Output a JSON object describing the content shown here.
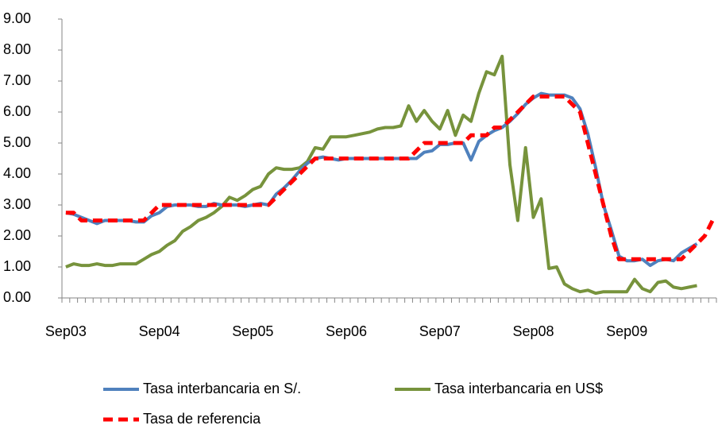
{
  "chart_data": {
    "type": "line",
    "categories": [
      "Sep03",
      null,
      null,
      null,
      null,
      null,
      null,
      null,
      null,
      null,
      null,
      null,
      "Sep04",
      null,
      null,
      null,
      null,
      null,
      null,
      null,
      null,
      null,
      null,
      null,
      "Sep05",
      null,
      null,
      null,
      null,
      null,
      null,
      null,
      null,
      null,
      null,
      null,
      "Sep06",
      null,
      null,
      null,
      null,
      null,
      null,
      null,
      null,
      null,
      null,
      null,
      "Sep07",
      null,
      null,
      null,
      null,
      null,
      null,
      null,
      null,
      null,
      null,
      null,
      "Sep08",
      null,
      null,
      null,
      null,
      null,
      null,
      null,
      null,
      null,
      null,
      null,
      "Sep09",
      null,
      null,
      null,
      null,
      null,
      null,
      null,
      null,
      null,
      null,
      null
    ],
    "series": [
      {
        "name": "Tasa interbancaria en S/.",
        "color": "#4f81bd",
        "dash": false,
        "values": [
          2.75,
          2.7,
          2.6,
          2.5,
          2.4,
          2.5,
          2.5,
          2.5,
          2.5,
          2.45,
          2.45,
          2.65,
          2.75,
          2.95,
          3.0,
          3.0,
          3.0,
          2.95,
          2.95,
          3.05,
          3.0,
          3.0,
          3.0,
          2.95,
          3.0,
          3.05,
          3.0,
          3.35,
          3.55,
          3.8,
          4.1,
          4.35,
          4.5,
          4.55,
          4.5,
          4.45,
          4.5,
          4.5,
          4.5,
          4.5,
          4.5,
          4.5,
          4.5,
          4.5,
          4.5,
          4.5,
          4.7,
          4.75,
          4.95,
          4.95,
          5.0,
          5.0,
          4.45,
          5.05,
          5.25,
          5.4,
          5.5,
          5.7,
          5.95,
          6.25,
          6.45,
          6.6,
          6.55,
          6.55,
          6.55,
          6.45,
          6.1,
          5.3,
          4.2,
          3.0,
          2.2,
          1.35,
          1.2,
          1.2,
          1.25,
          1.05,
          1.2,
          1.25,
          1.2,
          1.45,
          1.6,
          1.75,
          null,
          null
        ]
      },
      {
        "name": "Tasa interbancaria en US$",
        "color": "#77933c",
        "dash": false,
        "values": [
          1.0,
          1.1,
          1.05,
          1.05,
          1.1,
          1.05,
          1.05,
          1.1,
          1.1,
          1.1,
          1.25,
          1.4,
          1.5,
          1.7,
          1.85,
          2.15,
          2.3,
          2.5,
          2.6,
          2.75,
          2.95,
          3.25,
          3.15,
          3.3,
          3.5,
          3.6,
          4.0,
          4.2,
          4.15,
          4.15,
          4.2,
          4.4,
          4.85,
          4.8,
          5.2,
          5.2,
          5.2,
          5.25,
          5.3,
          5.35,
          5.45,
          5.5,
          5.5,
          5.55,
          6.2,
          5.7,
          6.05,
          5.7,
          5.45,
          6.05,
          5.25,
          5.9,
          5.7,
          6.6,
          7.3,
          7.2,
          7.8,
          4.3,
          2.5,
          4.85,
          2.6,
          3.2,
          0.95,
          1.0,
          0.45,
          0.3,
          0.2,
          0.25,
          0.15,
          0.2,
          0.2,
          0.2,
          0.2,
          0.6,
          0.3,
          0.2,
          0.5,
          0.55,
          0.35,
          0.3,
          0.35,
          0.4,
          null,
          null
        ]
      },
      {
        "name": "Tasa de referencia",
        "color": "#ff0000",
        "dash": true,
        "values": [
          2.75,
          2.75,
          2.5,
          2.5,
          2.5,
          2.5,
          2.5,
          2.5,
          2.5,
          2.5,
          2.5,
          2.75,
          3.0,
          3.0,
          3.0,
          3.0,
          3.0,
          3.0,
          3.0,
          3.0,
          3.0,
          3.0,
          3.0,
          3.0,
          3.0,
          3.0,
          3.0,
          3.25,
          3.5,
          3.75,
          4.0,
          4.25,
          4.5,
          4.5,
          4.5,
          4.5,
          4.5,
          4.5,
          4.5,
          4.5,
          4.5,
          4.5,
          4.5,
          4.5,
          4.5,
          4.75,
          5.0,
          5.0,
          5.0,
          5.0,
          5.0,
          5.0,
          5.25,
          5.25,
          5.25,
          5.5,
          5.5,
          5.75,
          6.0,
          6.25,
          6.5,
          6.5,
          6.5,
          6.5,
          6.5,
          6.25,
          6.0,
          5.0,
          4.0,
          3.0,
          2.0,
          1.25,
          1.25,
          1.25,
          1.25,
          1.25,
          1.25,
          1.25,
          1.25,
          1.25,
          1.5,
          1.75,
          2.0,
          2.5
        ]
      }
    ],
    "ylim": [
      0,
      9
    ],
    "yticks": [
      {
        "value": 0,
        "label": "0.00"
      },
      {
        "value": 1,
        "label": "1.00"
      },
      {
        "value": 2,
        "label": "2.00"
      },
      {
        "value": 3,
        "label": "3.00"
      },
      {
        "value": 4,
        "label": "4.00"
      },
      {
        "value": 5,
        "label": "5.00"
      },
      {
        "value": 6,
        "label": "6.00"
      },
      {
        "value": 7,
        "label": "7.00"
      },
      {
        "value": 8,
        "label": "8.00"
      },
      {
        "value": 9,
        "label": "9.00"
      }
    ],
    "grid": false,
    "legend": "bottom"
  }
}
